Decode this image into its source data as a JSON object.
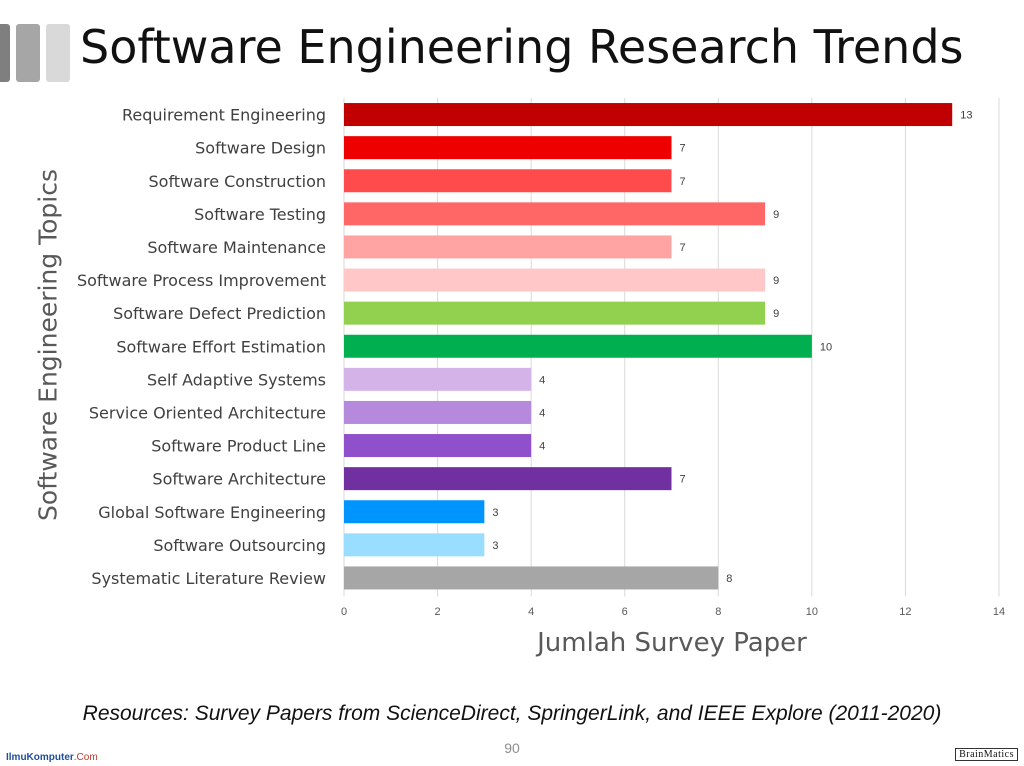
{
  "slide": {
    "title": "Software Engineering Research Trends",
    "source_note": "Resources: Survey Papers from ScienceDirect, SpringerLink, and IEEE Explore (2011-2020)",
    "page_number": "90",
    "logo_left": "IlmuKomputer",
    "logo_left_domain": ".Com",
    "logo_right": "BrainMatics"
  },
  "colors": {
    "deco1": "#7f7f7f",
    "deco2": "#a6a6a6",
    "deco3": "#d9d9d9",
    "grid": "#d9d9d9",
    "axis_text": "#595959",
    "label_text": "#404040"
  },
  "chart_data": {
    "type": "bar",
    "orientation": "horizontal",
    "title": "",
    "xlabel": "Jumlah Survey Paper",
    "ylabel": "Software Engineering Topics",
    "xlim": [
      0,
      14
    ],
    "xticks": [
      0,
      2,
      4,
      6,
      8,
      10,
      12,
      14
    ],
    "grid": true,
    "categories": [
      "Requirement Engineering",
      "Software Design",
      "Software Construction",
      "Software Testing",
      "Software Maintenance",
      "Software Process Improvement",
      "Software Defect Prediction",
      "Software Effort Estimation",
      "Self Adaptive Systems",
      "Service Oriented Architecture",
      "Software Product Line",
      "Software Architecture",
      "Global Software Engineering",
      "Software Outsourcing",
      "Systematic Literature Review"
    ],
    "values": [
      13,
      7,
      7,
      9,
      7,
      9,
      9,
      10,
      4,
      4,
      4,
      7,
      3,
      3,
      8
    ],
    "bar_colors": [
      "#c00000",
      "#ee0000",
      "#ff4b4b",
      "#ff6666",
      "#ffa3a3",
      "#ffc7c7",
      "#92d050",
      "#00b050",
      "#d4b3e8",
      "#b589dc",
      "#9050cc",
      "#7030a0",
      "#0094ff",
      "#99ddff",
      "#a6a6a6"
    ]
  }
}
